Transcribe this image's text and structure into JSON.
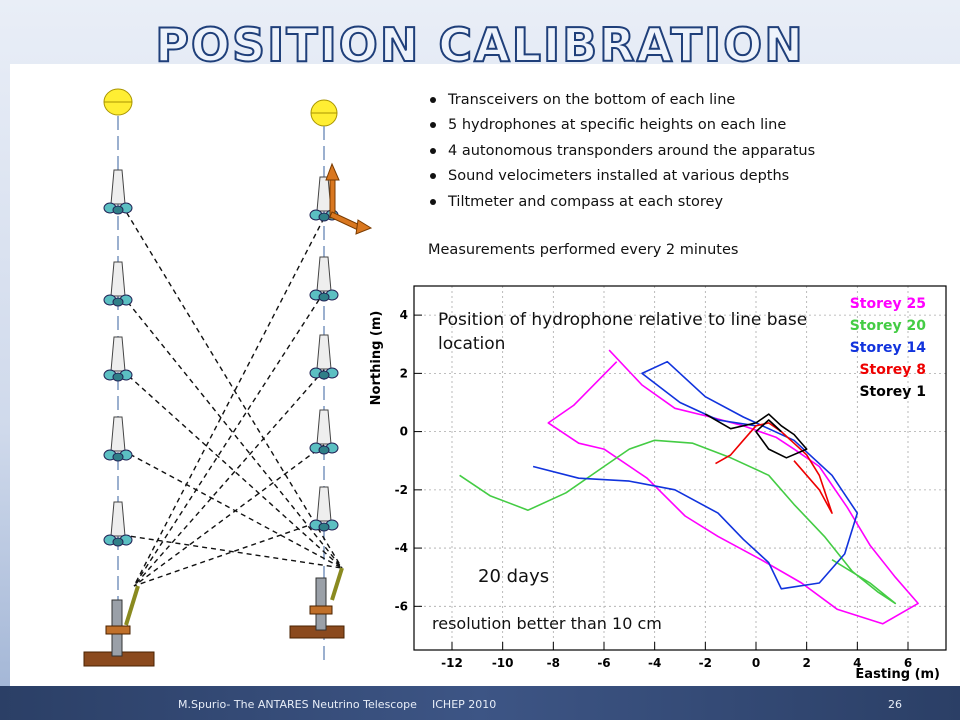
{
  "slide": {
    "title": "POSITION CALIBRATION",
    "bullets": [
      "Transceivers on the bottom of each line",
      "5 hydrophones at specific heights on each line",
      "4 autonomous transponders around the apparatus",
      "Sound velocimeters installed at various depths",
      "Tiltmeter and compass at each storey"
    ],
    "measurements": "Measurements performed every 2 minutes",
    "footer_left": "M.Spurio- The ANTARES Neutrino Telescope",
    "footer_mid": "ICHEP 2010",
    "page_number": "26"
  },
  "plot": {
    "overlay_title": "Position of hydrophone relative to line base location",
    "duration": "20 days",
    "resolution": "resolution better than 10 cm"
  },
  "chart_data": {
    "type": "line",
    "xlabel": "Easting (m)",
    "ylabel": "Northing (m)",
    "xlim": [
      -13.5,
      7.5
    ],
    "ylim": [
      -7.5,
      5
    ],
    "x_ticks": [
      -12,
      -10,
      -8,
      -6,
      -4,
      -2,
      0,
      2,
      4,
      6
    ],
    "y_ticks": [
      -6,
      -4,
      -2,
      0,
      2,
      4
    ],
    "grid": true,
    "legend_position": "top-right",
    "series": [
      {
        "name": "Storey 25",
        "color": "#ff00ff",
        "x": [
          -5.8,
          -4.5,
          -3.2,
          -1.8,
          -0.5,
          0.8,
          1.5,
          2.5,
          3.6,
          4.5,
          5.5,
          6.4,
          5.0,
          3.2,
          1.8,
          0.2,
          -1.5,
          -2.8,
          -4.3,
          -6.0,
          -7.0,
          -8.2,
          -7.2,
          -5.5
        ],
        "y": [
          2.8,
          1.6,
          0.8,
          0.5,
          0.2,
          -0.2,
          -0.6,
          -1.2,
          -2.6,
          -3.9,
          -5.0,
          -5.9,
          -6.6,
          -6.1,
          -5.2,
          -4.4,
          -3.6,
          -2.9,
          -1.6,
          -0.6,
          -0.4,
          0.3,
          0.9,
          2.4
        ]
      },
      {
        "name": "Storey 20",
        "color": "#44cc44",
        "x": [
          -11.7,
          -10.5,
          -9.0,
          -7.5,
          -6.0,
          -5.0,
          -4.0,
          -2.5,
          -1.0,
          0.5,
          1.5,
          2.7,
          3.8,
          4.8,
          5.5,
          4.5,
          3.0
        ],
        "y": [
          -1.5,
          -2.2,
          -2.7,
          -2.1,
          -1.2,
          -0.6,
          -0.3,
          -0.4,
          -0.9,
          -1.5,
          -2.5,
          -3.6,
          -4.8,
          -5.5,
          -5.9,
          -5.2,
          -4.4
        ]
      },
      {
        "name": "Storey 14",
        "color": "#1133dd",
        "x": [
          -8.8,
          -7.0,
          -5.0,
          -3.2,
          -1.5,
          -0.5,
          0.5,
          1.0,
          2.5,
          3.5,
          4.0,
          3.0,
          1.5,
          -0.5,
          -2.0,
          -3.5,
          -4.5,
          -3.0,
          -1.5,
          0.0
        ],
        "y": [
          -1.2,
          -1.6,
          -1.7,
          -2.0,
          -2.8,
          -3.7,
          -4.5,
          -5.4,
          -5.2,
          -4.2,
          -2.8,
          -1.5,
          -0.3,
          0.5,
          1.2,
          2.4,
          2.0,
          1.0,
          0.4,
          0.2
        ]
      },
      {
        "name": "Storey 8",
        "color": "#ee0000",
        "x": [
          -1.6,
          -1.0,
          -0.5,
          0.0,
          0.5,
          1.0,
          1.5,
          2.0,
          2.5,
          3.0,
          2.5,
          1.5
        ],
        "y": [
          -1.1,
          -0.8,
          -0.3,
          0.2,
          0.3,
          0.0,
          -0.4,
          -0.8,
          -1.5,
          -2.8,
          -2.0,
          -1.0
        ]
      },
      {
        "name": "Storey 1",
        "color": "#000000",
        "x": [
          -2.0,
          -1.0,
          0.0,
          0.5,
          1.0,
          1.5,
          2.0,
          1.2,
          0.5,
          0.0,
          0.5,
          1.0
        ],
        "y": [
          0.6,
          0.1,
          0.3,
          0.6,
          0.2,
          -0.1,
          -0.6,
          -0.9,
          -0.6,
          0.0,
          0.4,
          0.0
        ]
      }
    ]
  }
}
